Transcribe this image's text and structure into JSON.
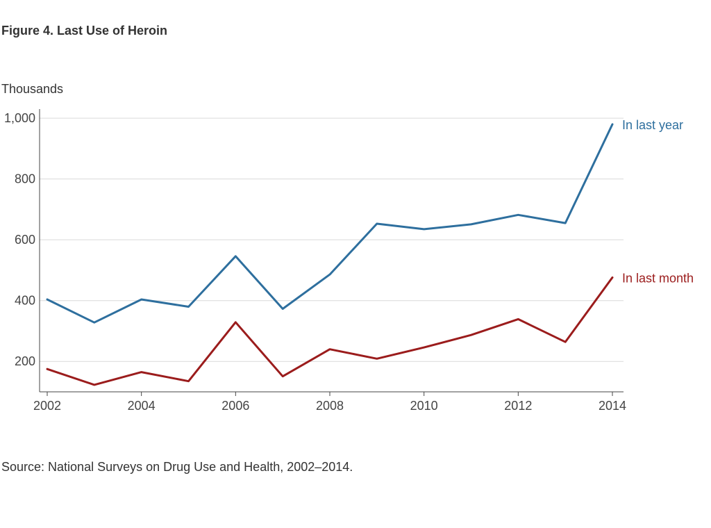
{
  "figure": {
    "title": "Figure 4. Last Use of Heroin",
    "source": "Source: National Surveys on Drug Use and Health, 2002–2014."
  },
  "chart_data": {
    "type": "line",
    "title": "Figure 4. Last Use of Heroin",
    "ylabel": "Thousands",
    "xlabel": "",
    "x": [
      2002,
      2003,
      2004,
      2005,
      2006,
      2007,
      2008,
      2009,
      2010,
      2011,
      2012,
      2013,
      2014
    ],
    "xticks": [
      2002,
      2004,
      2006,
      2008,
      2010,
      2012,
      2014
    ],
    "xtick_labels": [
      "2002",
      "2004",
      "2006",
      "2008",
      "2010",
      "2012",
      "2014"
    ],
    "xlim": [
      2002,
      2014
    ],
    "ylim": [
      100,
      1030
    ],
    "yticks": [
      200,
      400,
      600,
      800,
      1000
    ],
    "ytick_labels": [
      "200",
      "400",
      "600",
      "800",
      "1,000"
    ],
    "grid": true,
    "series": [
      {
        "name": "In last year",
        "color": "#2e6f9e",
        "values": [
          404,
          328,
          404,
          380,
          546,
          373,
          486,
          653,
          635,
          651,
          682,
          655,
          980
        ]
      },
      {
        "name": "In last month",
        "color": "#9b1c1c",
        "values": [
          175,
          123,
          165,
          135,
          329,
          151,
          240,
          209,
          246,
          287,
          339,
          264,
          476
        ]
      }
    ]
  }
}
